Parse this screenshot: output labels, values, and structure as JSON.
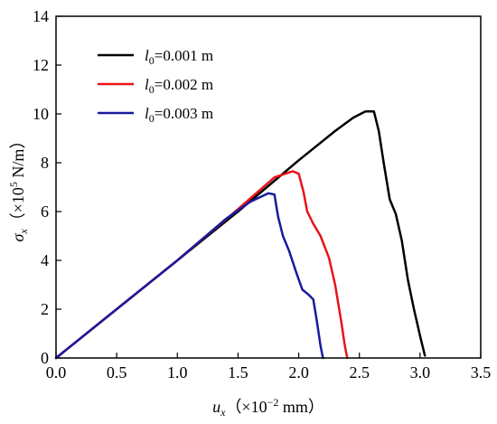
{
  "chart_data": {
    "type": "line",
    "xlim": [
      0.0,
      3.5
    ],
    "ylim": [
      0,
      14
    ],
    "x_ticks": [
      "0.0",
      "0.5",
      "1.0",
      "1.5",
      "2.0",
      "2.5",
      "3.0",
      "3.5"
    ],
    "y_ticks": [
      "0",
      "2",
      "4",
      "6",
      "8",
      "10",
      "12",
      "14"
    ],
    "xlabel": {
      "symbol": "u",
      "subscript": "x",
      "text": "（×10",
      "exponent": "−2",
      "unit": " mm）"
    },
    "ylabel": {
      "symbol": "σ",
      "subscript": "x",
      "text": "（×10",
      "exponent": "5",
      "unit": " N/m）"
    },
    "legend_position": "top-left",
    "grid": false,
    "series": [
      {
        "name": "l0=0.001 m",
        "legend": {
          "symbol": "l",
          "subscript": "0",
          "value": "=0.001 m"
        },
        "color": "#000000",
        "x": [
          0.0,
          0.5,
          1.0,
          1.5,
          2.0,
          2.3,
          2.45,
          2.55,
          2.62,
          2.66,
          2.7,
          2.75,
          2.8,
          2.85,
          2.9,
          2.95,
          3.0,
          3.04
        ],
        "y": [
          0.0,
          2.0,
          4.0,
          6.0,
          8.1,
          9.3,
          9.85,
          10.1,
          10.1,
          9.3,
          8.0,
          6.5,
          5.9,
          4.8,
          3.2,
          2.0,
          0.9,
          0.1
        ]
      },
      {
        "name": "l0=0.002 m",
        "legend": {
          "symbol": "l",
          "subscript": "0",
          "value": "=0.002 m"
        },
        "color": "#e8141a",
        "x": [
          0.0,
          0.5,
          1.0,
          1.5,
          1.8,
          1.95,
          2.0,
          2.04,
          2.07,
          2.12,
          2.18,
          2.25,
          2.3,
          2.35,
          2.38,
          2.4
        ],
        "y": [
          0.0,
          2.0,
          4.0,
          6.1,
          7.4,
          7.65,
          7.55,
          6.8,
          6.0,
          5.5,
          5.0,
          4.1,
          3.0,
          1.5,
          0.5,
          0.0
        ]
      },
      {
        "name": "l0=0.003 m",
        "legend": {
          "symbol": "l",
          "subscript": "0",
          "value": "=0.003 m"
        },
        "color": "#1a1a9c",
        "x": [
          0.0,
          0.5,
          1.0,
          1.4,
          1.6,
          1.75,
          1.8,
          1.83,
          1.87,
          1.92,
          1.98,
          2.03,
          2.08,
          2.12,
          2.15,
          2.18,
          2.2
        ],
        "y": [
          0.0,
          2.0,
          4.0,
          5.7,
          6.4,
          6.75,
          6.7,
          5.8,
          5.0,
          4.4,
          3.5,
          2.8,
          2.6,
          2.4,
          1.5,
          0.5,
          0.0
        ]
      }
    ]
  }
}
